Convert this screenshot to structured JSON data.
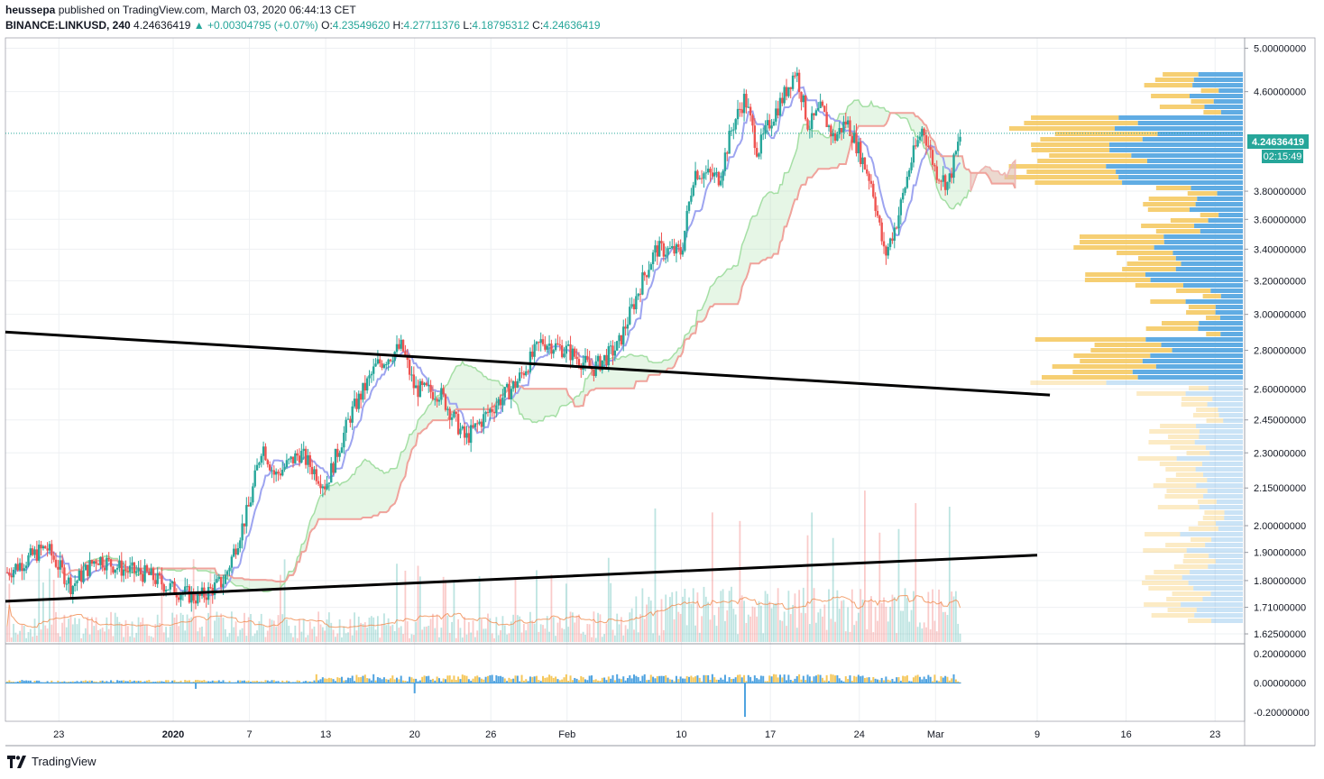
{
  "header": {
    "user": "heussepa",
    "published_text": "published on TradingView.com, March 03, 2020 06:44:13 CET",
    "symbol": "BINANCE:LINKUSD, 240",
    "price": "4.24636419",
    "change": "+0.00304795 (+0.07%)",
    "o_label": "O:",
    "o_value": "4.23549620",
    "h_label": "H:",
    "h_value": "4.27711376",
    "l_label": "L:",
    "l_value": "4.18795312",
    "c_label": "C:",
    "c_value": "4.24636419"
  },
  "price_badge": {
    "value": "4.24636419",
    "countdown": "02:15:49",
    "color": "#26a69a"
  },
  "footer": {
    "brand": "TradingView"
  },
  "colors": {
    "up": "#26a69a",
    "down": "#ef5350",
    "conversion": "#9da4f0",
    "base": "#f0a39c",
    "cloud_green": "#a5dfa5",
    "cloud_red": "#f3b3b3",
    "vp_blue": "#4fa3e0",
    "vp_gold": "#f5c75a",
    "trendline": "#000000",
    "volume_ma": "#f08a4b"
  },
  "chart_data": {
    "type": "line",
    "symbol": "BINANCE:LINKUSD",
    "interval": "240",
    "x_ticks": [
      "23",
      "2020",
      "7",
      "13",
      "20",
      "26",
      "Feb",
      "10",
      "17",
      "24",
      "Mar",
      "9",
      "16",
      "23"
    ],
    "price_axis_ticks": [
      "5.00000000",
      "4.60000000",
      "3.80000000",
      "3.60000000",
      "3.40000000",
      "3.20000000",
      "3.00000000",
      "2.80000000",
      "2.60000000",
      "2.45000000",
      "2.30000000",
      "2.15000000",
      "2.00000000",
      "1.90000000",
      "1.80000000",
      "1.71000000",
      "1.62500000"
    ],
    "oscillator_ticks": [
      "0.20000000",
      "0.00000000",
      "-0.20000000"
    ],
    "y_scale": "log",
    "y_range": [
      1.6,
      5.1
    ],
    "last_price": 4.24636419,
    "price_path": [
      {
        "x": "Dec 20",
        "y": 1.86
      },
      {
        "x": "Dec 22",
        "y": 1.92
      },
      {
        "x": "Dec 24",
        "y": 1.78
      },
      {
        "x": "Dec 26",
        "y": 1.88
      },
      {
        "x": "Dec 28",
        "y": 1.84
      },
      {
        "x": "Dec 30",
        "y": 1.82
      },
      {
        "x": "Jan 1",
        "y": 1.77
      },
      {
        "x": "Jan 3",
        "y": 1.74
      },
      {
        "x": "Jan 5",
        "y": 1.8
      },
      {
        "x": "Jan 7",
        "y": 2.08
      },
      {
        "x": "Jan 8",
        "y": 2.34
      },
      {
        "x": "Jan 9",
        "y": 2.2
      },
      {
        "x": "Jan 11",
        "y": 2.3
      },
      {
        "x": "Jan 13",
        "y": 2.16
      },
      {
        "x": "Jan 15",
        "y": 2.48
      },
      {
        "x": "Jan 17",
        "y": 2.72
      },
      {
        "x": "Jan 19",
        "y": 2.82
      },
      {
        "x": "Jan 20",
        "y": 2.6
      },
      {
        "x": "Jan 22",
        "y": 2.58
      },
      {
        "x": "Jan 24",
        "y": 2.36
      },
      {
        "x": "Jan 26",
        "y": 2.5
      },
      {
        "x": "Jan 28",
        "y": 2.63
      },
      {
        "x": "Jan 30",
        "y": 2.85
      },
      {
        "x": "Feb 1",
        "y": 2.8
      },
      {
        "x": "Feb 3",
        "y": 2.7
      },
      {
        "x": "Feb 5",
        "y": 2.82
      },
      {
        "x": "Feb 7",
        "y": 3.22
      },
      {
        "x": "Feb 8",
        "y": 3.4
      },
      {
        "x": "Feb 10",
        "y": 3.38
      },
      {
        "x": "Feb 11",
        "y": 3.95
      },
      {
        "x": "Feb 13",
        "y": 3.9
      },
      {
        "x": "Feb 14",
        "y": 4.3
      },
      {
        "x": "Feb 15",
        "y": 4.55
      },
      {
        "x": "Feb 16",
        "y": 4.1
      },
      {
        "x": "Feb 17",
        "y": 4.35
      },
      {
        "x": "Feb 18",
        "y": 4.55
      },
      {
        "x": "Feb 19",
        "y": 4.8
      },
      {
        "x": "Feb 20",
        "y": 4.3
      },
      {
        "x": "Feb 21",
        "y": 4.45
      },
      {
        "x": "Feb 22",
        "y": 4.2
      },
      {
        "x": "Feb 23",
        "y": 4.35
      },
      {
        "x": "Feb 24",
        "y": 4.1
      },
      {
        "x": "Feb 25",
        "y": 3.85
      },
      {
        "x": "Feb 26",
        "y": 3.35
      },
      {
        "x": "Feb 27",
        "y": 3.6
      },
      {
        "x": "Feb 28",
        "y": 4.0
      },
      {
        "x": "Feb 29",
        "y": 4.3
      },
      {
        "x": "Mar 1",
        "y": 3.95
      },
      {
        "x": "Mar 2",
        "y": 3.85
      },
      {
        "x": "Mar 3",
        "y": 4.24636419
      }
    ],
    "trendlines": [
      {
        "name": "upper",
        "start": {
          "x": "Dec 20",
          "y": 2.9
        },
        "end": {
          "x": "Mar 10",
          "y": 2.57
        }
      },
      {
        "name": "lower",
        "start": {
          "x": "Dec 20",
          "y": 1.73
        },
        "end": {
          "x": "Mar 9",
          "y": 1.89
        }
      }
    ],
    "grid": true
  }
}
